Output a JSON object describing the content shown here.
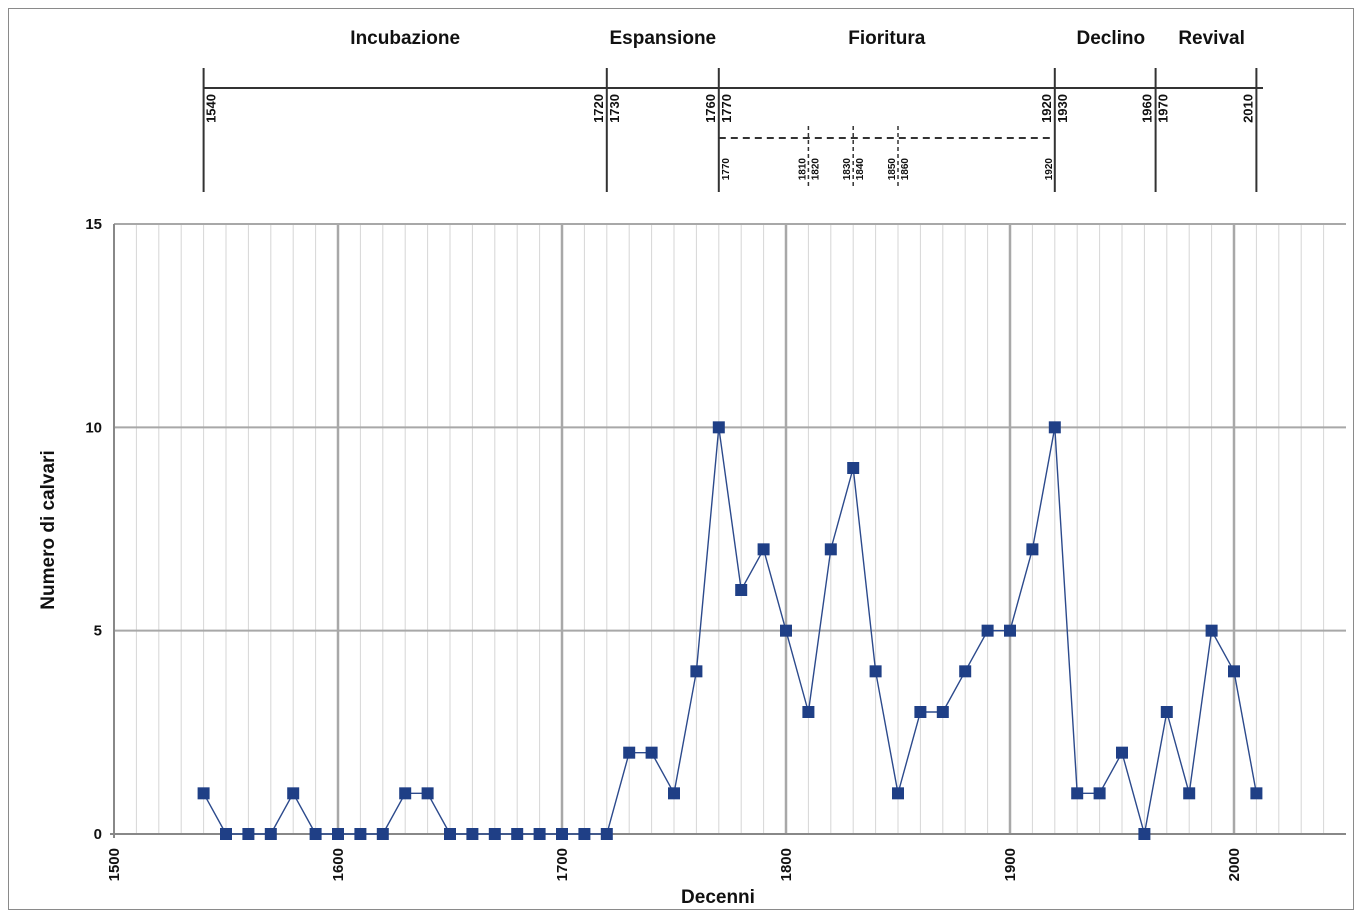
{
  "chart_data": {
    "type": "line",
    "xlabel": "Decenni",
    "ylabel": "Numero di calvari",
    "xlim": [
      1500,
      2050
    ],
    "ylim": [
      0,
      15
    ],
    "x_ticks": [
      1500,
      1600,
      1700,
      1800,
      1900,
      2000
    ],
    "y_ticks": [
      0,
      5,
      10,
      15
    ],
    "x_minor_step": 10,
    "grid": true,
    "marker": "square",
    "line_color": "#2c4a8c",
    "marker_color": "#1f3f86",
    "x": [
      1540,
      1550,
      1560,
      1570,
      1580,
      1590,
      1600,
      1610,
      1620,
      1630,
      1640,
      1650,
      1660,
      1670,
      1680,
      1690,
      1700,
      1710,
      1720,
      1730,
      1740,
      1750,
      1760,
      1770,
      1780,
      1790,
      1800,
      1810,
      1820,
      1830,
      1840,
      1850,
      1860,
      1870,
      1880,
      1890,
      1900,
      1910,
      1920,
      1930,
      1940,
      1950,
      1960,
      1970,
      1980,
      1990,
      2000,
      2010
    ],
    "values": [
      1,
      0,
      0,
      0,
      1,
      0,
      0,
      0,
      0,
      1,
      1,
      0,
      0,
      0,
      0,
      0,
      0,
      0,
      0,
      2,
      2,
      1,
      4,
      10,
      6,
      7,
      5,
      3,
      7,
      9,
      4,
      1,
      3,
      3,
      4,
      5,
      5,
      7,
      10,
      1,
      1,
      2,
      0,
      3,
      1,
      5,
      4,
      1
    ]
  },
  "timeline": {
    "phases": [
      {
        "label": "Incubazione",
        "center": 1630
      },
      {
        "label": "Espansione",
        "center": 1745
      },
      {
        "label": "Fioritura",
        "center": 1845
      },
      {
        "label": "Declino",
        "center": 1945
      },
      {
        "label": "Revival",
        "center": 1990
      }
    ],
    "boundaries": [
      1540,
      1720,
      1770,
      1920,
      1965,
      2010
    ],
    "solid_labels": [
      {
        "text": "1540",
        "year": 1540,
        "side": "right"
      },
      {
        "text": "1720",
        "year": 1720,
        "side": "left"
      },
      {
        "text": "1730",
        "year": 1720,
        "side": "right"
      },
      {
        "text": "1760",
        "year": 1770,
        "side": "left"
      },
      {
        "text": "1770",
        "year": 1770,
        "side": "right"
      },
      {
        "text": "1920",
        "year": 1920,
        "side": "left"
      },
      {
        "text": "1930",
        "year": 1920,
        "side": "right"
      },
      {
        "text": "1960",
        "year": 1965,
        "side": "left"
      },
      {
        "text": "1970",
        "year": 1965,
        "side": "right"
      },
      {
        "text": "2010",
        "year": 2010,
        "side": "left"
      }
    ],
    "dashed_boundaries": [
      1810,
      1830,
      1850
    ],
    "dashed_labels": [
      {
        "text": "1770",
        "year": 1770,
        "side": "right"
      },
      {
        "text": "1810",
        "year": 1810,
        "side": "left"
      },
      {
        "text": "1820",
        "year": 1810,
        "side": "right"
      },
      {
        "text": "1830",
        "year": 1830,
        "side": "left"
      },
      {
        "text": "1840",
        "year": 1830,
        "side": "right"
      },
      {
        "text": "1850",
        "year": 1850,
        "side": "left"
      },
      {
        "text": "1860",
        "year": 1850,
        "side": "right"
      },
      {
        "text": "1920",
        "year": 1920,
        "side": "left"
      }
    ]
  }
}
